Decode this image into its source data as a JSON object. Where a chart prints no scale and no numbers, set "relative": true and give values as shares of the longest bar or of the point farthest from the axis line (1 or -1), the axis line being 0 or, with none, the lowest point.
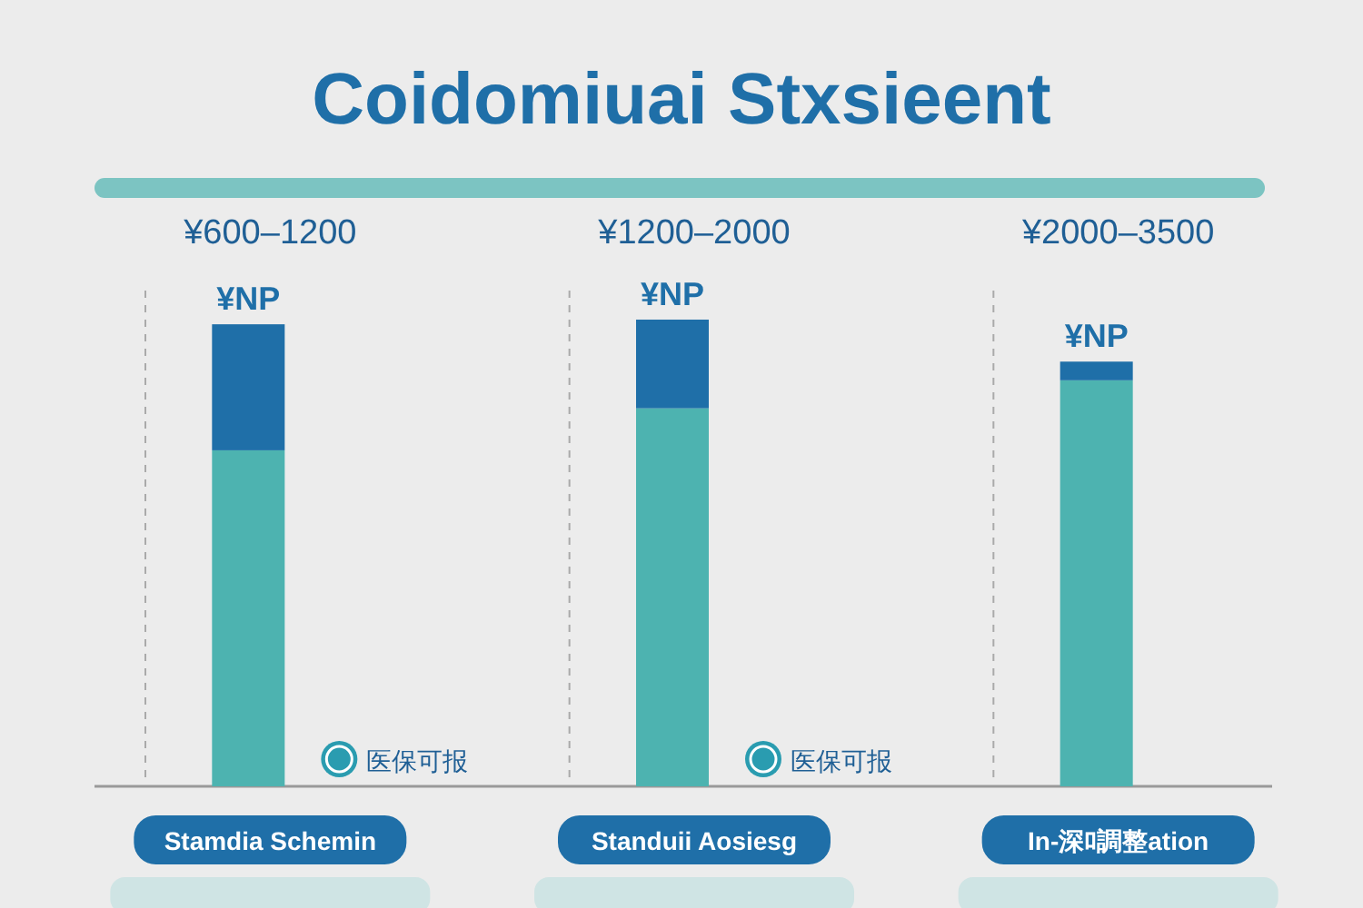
{
  "chart_data": {
    "type": "bar",
    "title": "Coidomiuai Stxsieent",
    "categories": [
      "¥600–1200",
      "¥1200–2000",
      "¥2000–3500"
    ],
    "stacked": true,
    "relative": true,
    "series": [
      {
        "color": "#4db3b0",
        "values": [
          0.72,
          0.81,
          0.87
        ]
      },
      {
        "color": "#1f6fa8",
        "values": [
          0.27,
          0.19,
          0.04
        ]
      }
    ],
    "totals": [
      "¥NP",
      "¥NP",
      "¥NP"
    ],
    "annotations": [
      "Stamdia Schemin",
      "Standuii Aosiesg",
      "In-深ﾛ調整ation",
      "医保可报",
      "医保可报"
    ]
  }
}
